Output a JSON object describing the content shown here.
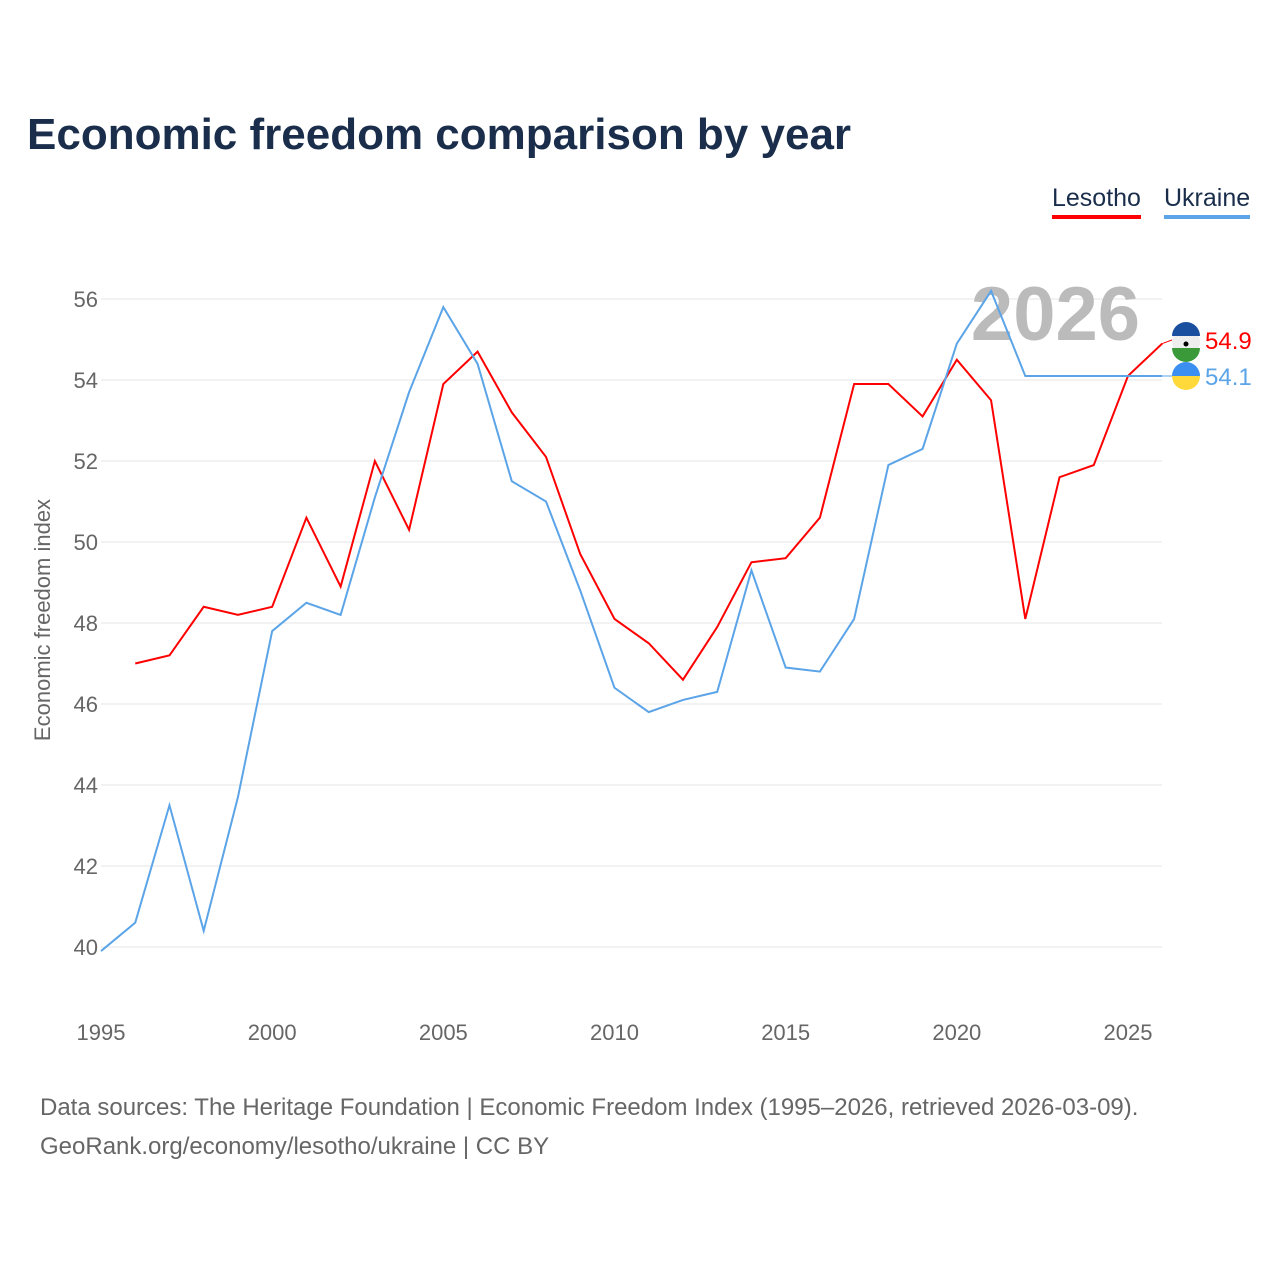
{
  "title": "Economic freedom comparison by year",
  "legend": [
    {
      "name": "Lesotho",
      "color": "#ff0000"
    },
    {
      "name": "Ukraine",
      "color": "#5ba4e8"
    }
  ],
  "year_watermark": "2026",
  "footer": {
    "line1": "Data sources: The Heritage Foundation | Economic Freedom Index (1995–2026, retrieved 2026-03-09).",
    "line2": "GeoRank.org/economy/lesotho/ukraine | CC BY"
  },
  "chart_data": {
    "type": "line",
    "title": "Economic freedom comparison by year",
    "xlabel": "",
    "ylabel": "Economic freedom index",
    "xlim": [
      1995,
      2026
    ],
    "ylim": [
      40,
      56
    ],
    "xticks": [
      1995,
      2000,
      2005,
      2010,
      2015,
      2020,
      2025
    ],
    "yticks": [
      40,
      42,
      44,
      46,
      48,
      50,
      52,
      54,
      56
    ],
    "grid": true,
    "legend_position": "top-right",
    "series": [
      {
        "name": "Lesotho",
        "color": "#ff0000",
        "end_label": "54.9",
        "x": [
          1996,
          1997,
          1998,
          1999,
          2000,
          2001,
          2002,
          2003,
          2004,
          2005,
          2006,
          2007,
          2008,
          2009,
          2010,
          2011,
          2012,
          2013,
          2014,
          2015,
          2016,
          2017,
          2018,
          2019,
          2020,
          2021,
          2022,
          2023,
          2024,
          2025,
          2026
        ],
        "values": [
          47.0,
          47.2,
          48.4,
          48.2,
          48.4,
          50.6,
          48.9,
          52.0,
          50.3,
          53.9,
          54.7,
          53.2,
          52.1,
          49.7,
          48.1,
          47.5,
          46.6,
          47.9,
          49.5,
          49.6,
          50.6,
          53.9,
          53.9,
          53.1,
          54.5,
          53.5,
          48.1,
          51.6,
          51.9,
          54.1,
          54.9
        ]
      },
      {
        "name": "Ukraine",
        "color": "#5ba4e8",
        "end_label": "54.1",
        "x": [
          1995,
          1996,
          1997,
          1998,
          1999,
          2000,
          2001,
          2002,
          2003,
          2004,
          2005,
          2006,
          2007,
          2008,
          2009,
          2010,
          2011,
          2012,
          2013,
          2014,
          2015,
          2016,
          2017,
          2018,
          2019,
          2020,
          2021,
          2022,
          2023,
          2024,
          2025,
          2026
        ],
        "values": [
          39.9,
          40.6,
          43.5,
          40.4,
          43.7,
          47.8,
          48.5,
          48.2,
          51.1,
          53.7,
          55.8,
          54.4,
          51.5,
          51.0,
          48.8,
          46.4,
          45.8,
          46.1,
          46.3,
          49.3,
          46.9,
          46.8,
          48.1,
          51.9,
          52.3,
          54.9,
          56.2,
          54.1,
          54.1,
          54.1,
          54.1,
          54.1
        ]
      }
    ]
  }
}
